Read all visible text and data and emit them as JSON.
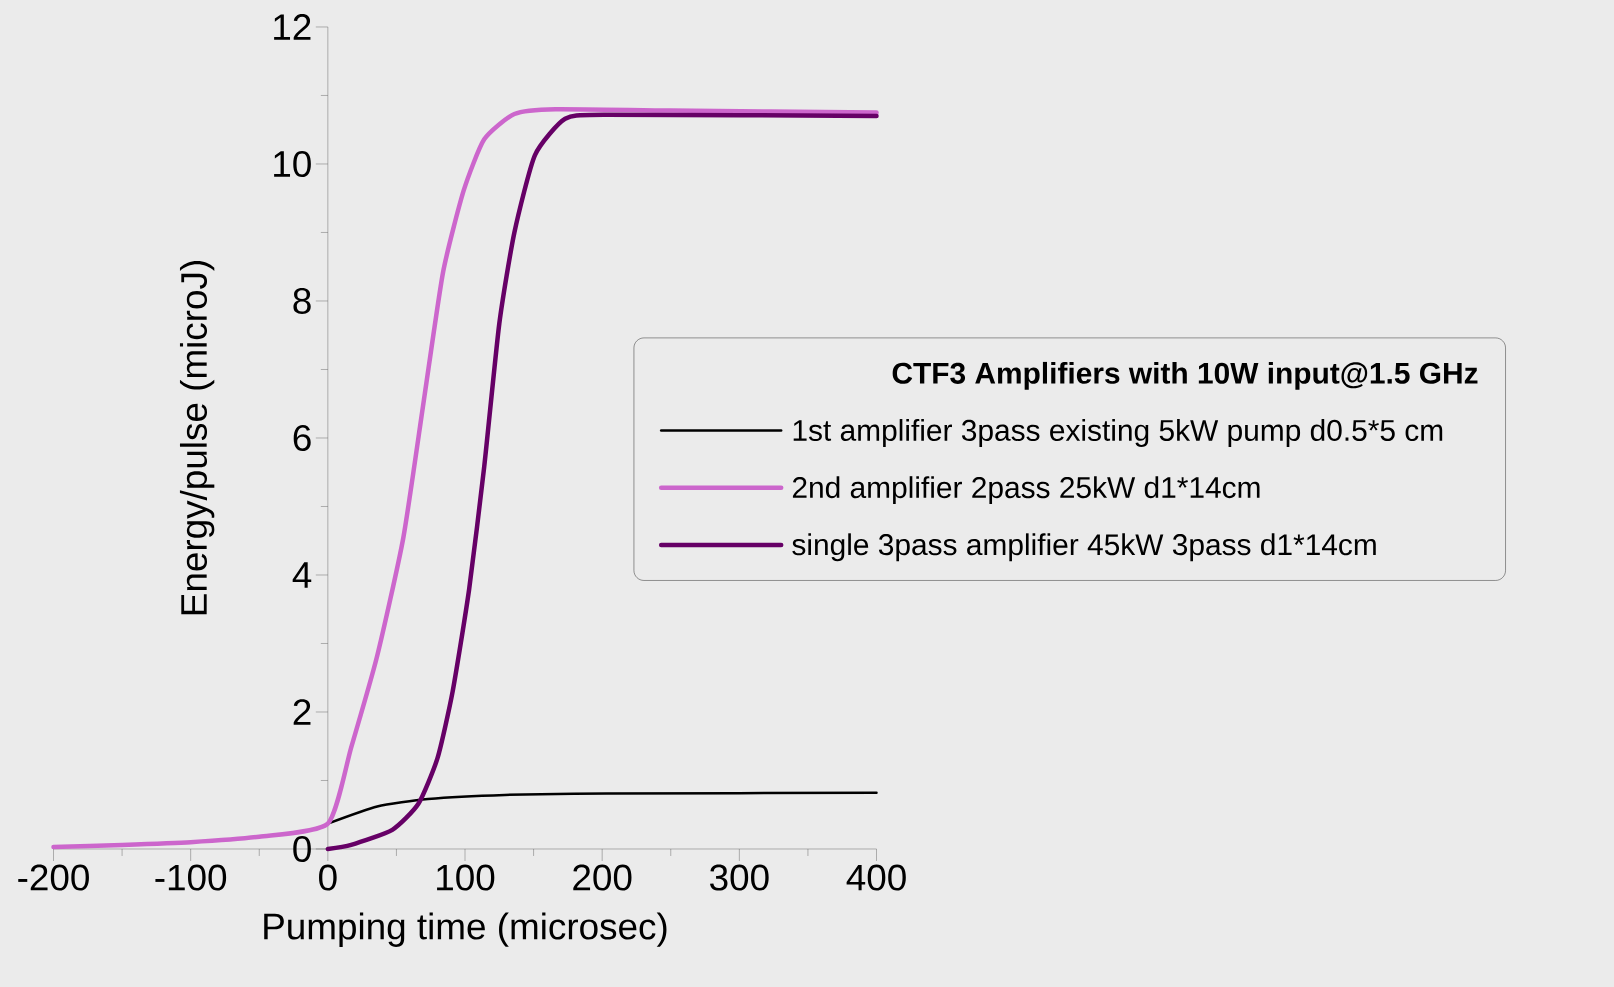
{
  "chart_data": {
    "type": "line",
    "xlabel": "Pumping time (microsec)",
    "ylabel": "Energy/pulse (microJ)",
    "legend_title": "CTF3 Amplifiers with 10W input@1.5 GHz",
    "legend": "right",
    "xlim": [
      -200,
      400
    ],
    "ylim": [
      0,
      12
    ],
    "xticks": [
      -200,
      -100,
      0,
      100,
      200,
      300,
      400
    ],
    "yticks": [
      0,
      2,
      4,
      6,
      8,
      10,
      12
    ],
    "series": [
      {
        "name": "1st amplifier 3pass existing 5kW pump d0.5*5 cm",
        "color": "#000000",
        "x": [
          0,
          36,
          73,
          129,
          203,
          400
        ],
        "values": [
          0.37,
          0.62,
          0.73,
          0.79,
          0.81,
          0.82
        ]
      },
      {
        "name": "2nd amplifier 2pass 25kW d1*14cm",
        "color": "#cc66cc",
        "x": [
          -200,
          -150,
          -100,
          -50,
          0,
          17,
          36,
          55,
          70,
          84,
          99,
          114,
          136,
          166,
          250,
          400
        ],
        "values": [
          0.03,
          0.06,
          0.1,
          0.18,
          0.37,
          1.48,
          2.82,
          4.54,
          6.55,
          8.42,
          9.61,
          10.36,
          10.73,
          10.8,
          10.78,
          10.75
        ]
      },
      {
        "name": "single 3pass amplifier 45kW 3pass d1*14cm",
        "color": "#660066",
        "x": [
          0,
          17,
          47,
          66,
          80,
          91,
          103,
          114,
          125,
          136,
          151,
          173,
          203,
          400
        ],
        "values": [
          0,
          0.06,
          0.28,
          0.66,
          1.33,
          2.3,
          3.79,
          5.58,
          7.67,
          9.0,
          10.13,
          10.66,
          10.72,
          10.7
        ]
      }
    ]
  }
}
